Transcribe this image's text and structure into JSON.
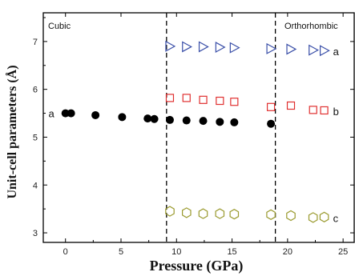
{
  "chart_data": {
    "type": "scatter",
    "title": "",
    "xlabel": "Pressure (GPa)",
    "ylabel": "Unit-cell parameters (Å)",
    "xlim": [
      -2,
      26
    ],
    "ylim": [
      2.8,
      7.6
    ],
    "xticks": [
      "0",
      "5",
      "10",
      "15",
      "20",
      "25"
    ],
    "yticks": [
      "3",
      "4",
      "5",
      "6",
      "7"
    ],
    "grid": false,
    "phase_labels": [
      "Cubic",
      "Orthorhombic"
    ],
    "phase_boundaries_gpa": [
      9.1,
      18.9
    ],
    "series": [
      {
        "name": "a",
        "marker": "circle-filled",
        "color": "#000000",
        "points": [
          {
            "x": 0.0,
            "y": 5.5
          },
          {
            "x": 0.5,
            "y": 5.5
          },
          {
            "x": 2.7,
            "y": 5.46
          },
          {
            "x": 5.1,
            "y": 5.42
          },
          {
            "x": 7.4,
            "y": 5.39
          },
          {
            "x": 8.0,
            "y": 5.38
          },
          {
            "x": 9.4,
            "y": 5.36
          },
          {
            "x": 10.9,
            "y": 5.35
          },
          {
            "x": 12.4,
            "y": 5.34
          },
          {
            "x": 13.9,
            "y": 5.32
          },
          {
            "x": 15.2,
            "y": 5.31
          },
          {
            "x": 18.5,
            "y": 5.28
          }
        ]
      },
      {
        "name": "a",
        "marker": "triangle-right-open",
        "color": "#3a4fa8",
        "points": [
          {
            "x": 9.4,
            "y": 6.9
          },
          {
            "x": 10.9,
            "y": 6.89
          },
          {
            "x": 12.4,
            "y": 6.89
          },
          {
            "x": 13.9,
            "y": 6.88
          },
          {
            "x": 15.2,
            "y": 6.87
          },
          {
            "x": 18.5,
            "y": 6.85
          },
          {
            "x": 20.3,
            "y": 6.84
          },
          {
            "x": 22.3,
            "y": 6.82
          },
          {
            "x": 23.3,
            "y": 6.81
          }
        ]
      },
      {
        "name": "b",
        "marker": "square-open",
        "color": "#e03030",
        "points": [
          {
            "x": 9.4,
            "y": 5.82
          },
          {
            "x": 10.9,
            "y": 5.82
          },
          {
            "x": 12.4,
            "y": 5.78
          },
          {
            "x": 13.9,
            "y": 5.76
          },
          {
            "x": 15.2,
            "y": 5.74
          },
          {
            "x": 18.5,
            "y": 5.63
          },
          {
            "x": 20.3,
            "y": 5.66
          },
          {
            "x": 22.3,
            "y": 5.57
          },
          {
            "x": 23.3,
            "y": 5.56
          }
        ]
      },
      {
        "name": "c",
        "marker": "hexagon-open",
        "color": "#9a9a2e",
        "points": [
          {
            "x": 9.4,
            "y": 3.45
          },
          {
            "x": 10.9,
            "y": 3.42
          },
          {
            "x": 12.4,
            "y": 3.4
          },
          {
            "x": 13.9,
            "y": 3.4
          },
          {
            "x": 15.2,
            "y": 3.39
          },
          {
            "x": 18.5,
            "y": 3.38
          },
          {
            "x": 20.3,
            "y": 3.36
          },
          {
            "x": 22.3,
            "y": 3.32
          },
          {
            "x": 23.3,
            "y": 3.33
          }
        ]
      }
    ]
  }
}
